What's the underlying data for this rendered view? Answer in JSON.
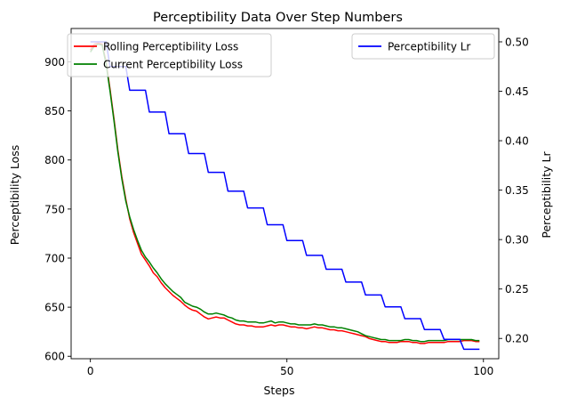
{
  "chart_data": {
    "type": "line",
    "title": "Perceptibility Data Over Step Numbers",
    "xlabel": "Steps",
    "ylabel": "Perceptibility Loss",
    "y2label": "Perceptibility Lr",
    "xlim": [
      -4.9,
      103.9
    ],
    "ylim": [
      597.5,
      934
    ],
    "y2lim": [
      0.1795,
      0.5135
    ],
    "xticks": [
      0,
      50,
      100
    ],
    "yticks": [
      600,
      650,
      700,
      750,
      800,
      850,
      900
    ],
    "y2ticks": [
      0.2,
      0.25,
      0.3,
      0.35,
      0.4,
      0.45,
      0.5
    ],
    "legend_left": {
      "placement": "upper-left",
      "entries": [
        "Rolling Perceptibility Loss",
        "Current Perceptibility Loss"
      ]
    },
    "legend_right": {
      "placement": "upper-right",
      "entries": [
        "Perceptibility Lr"
      ]
    },
    "x": [
      0,
      1,
      2,
      3,
      4,
      5,
      6,
      7,
      8,
      9,
      10,
      11,
      12,
      13,
      14,
      15,
      16,
      17,
      18,
      19,
      20,
      21,
      22,
      23,
      24,
      25,
      26,
      27,
      28,
      29,
      30,
      31,
      32,
      33,
      34,
      35,
      36,
      37,
      38,
      39,
      40,
      41,
      42,
      43,
      44,
      45,
      46,
      47,
      48,
      49,
      50,
      51,
      52,
      53,
      54,
      55,
      56,
      57,
      58,
      59,
      60,
      61,
      62,
      63,
      64,
      65,
      66,
      67,
      68,
      69,
      70,
      71,
      72,
      73,
      74,
      75,
      76,
      77,
      78,
      79,
      80,
      81,
      82,
      83,
      84,
      85,
      86,
      87,
      88,
      89,
      90,
      91,
      92,
      93,
      94,
      95,
      96,
      97,
      98,
      99
    ],
    "series": [
      {
        "name": "Rolling Perceptibility Loss",
        "color": "#ff0000",
        "axis": "left",
        "values": [
          912,
          918,
          919,
          918,
          900,
          872,
          842,
          810,
          783,
          760,
          740,
          726,
          715,
          704,
          698,
          692,
          685,
          681,
          675,
          670,
          666,
          662,
          659,
          656,
          652,
          649,
          647,
          646,
          643,
          640,
          638,
          639,
          640,
          639,
          639,
          637,
          635,
          633,
          632,
          632,
          631,
          631,
          630,
          630,
          630,
          631,
          632,
          631,
          632,
          632,
          631,
          630,
          630,
          629,
          629,
          628,
          629,
          630,
          629,
          629,
          628,
          627,
          627,
          626,
          626,
          625,
          624,
          623,
          622,
          621,
          620,
          618,
          617,
          616,
          615,
          615,
          614,
          614,
          614,
          615,
          615,
          615,
          614,
          614,
          613,
          613,
          614,
          614,
          614,
          614,
          614,
          615,
          615,
          615,
          615,
          616,
          616,
          616,
          615,
          615
        ]
      },
      {
        "name": "Current Perceptibility Loss",
        "color": "#008000",
        "axis": "left",
        "values": [
          910,
          916,
          918,
          917,
          898,
          870,
          840,
          808,
          781,
          758,
          742,
          729,
          718,
          708,
          701,
          696,
          690,
          685,
          679,
          674,
          670,
          666,
          663,
          660,
          655,
          653,
          651,
          650,
          648,
          645,
          643,
          643,
          644,
          643,
          642,
          640,
          639,
          637,
          636,
          636,
          635,
          635,
          635,
          634,
          634,
          635,
          636,
          634,
          635,
          635,
          634,
          633,
          633,
          632,
          632,
          632,
          632,
          633,
          632,
          632,
          631,
          630,
          630,
          629,
          629,
          628,
          627,
          626,
          625,
          623,
          621,
          620,
          619,
          618,
          617,
          617,
          616,
          616,
          616,
          616,
          617,
          617,
          616,
          616,
          615,
          615,
          616,
          616,
          616,
          616,
          616,
          617,
          617,
          617,
          617,
          617,
          617,
          617,
          616,
          616
        ]
      },
      {
        "name": "Perceptibility Lr",
        "color": "#0000ff",
        "axis": "right",
        "values": [
          0.5,
          0.5,
          0.5,
          0.5,
          0.5,
          0.475,
          0.475,
          0.475,
          0.475,
          0.475,
          0.451,
          0.451,
          0.451,
          0.451,
          0.451,
          0.429,
          0.429,
          0.429,
          0.429,
          0.429,
          0.407,
          0.407,
          0.407,
          0.407,
          0.407,
          0.387,
          0.387,
          0.387,
          0.387,
          0.387,
          0.368,
          0.368,
          0.368,
          0.368,
          0.368,
          0.349,
          0.349,
          0.349,
          0.349,
          0.349,
          0.332,
          0.332,
          0.332,
          0.332,
          0.332,
          0.315,
          0.315,
          0.315,
          0.315,
          0.315,
          0.299,
          0.299,
          0.299,
          0.299,
          0.299,
          0.284,
          0.284,
          0.284,
          0.284,
          0.284,
          0.27,
          0.27,
          0.27,
          0.27,
          0.27,
          0.257,
          0.257,
          0.257,
          0.257,
          0.257,
          0.244,
          0.244,
          0.244,
          0.244,
          0.244,
          0.232,
          0.232,
          0.232,
          0.232,
          0.232,
          0.22,
          0.22,
          0.22,
          0.22,
          0.22,
          0.209,
          0.209,
          0.209,
          0.209,
          0.209,
          0.199,
          0.199,
          0.199,
          0.199,
          0.199,
          0.189,
          0.189,
          0.189,
          0.189,
          0.189
        ]
      }
    ]
  }
}
